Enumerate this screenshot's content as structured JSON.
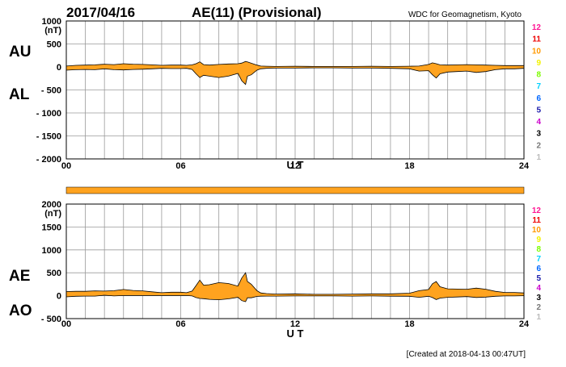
{
  "header": {
    "date": "2017/04/16",
    "title": "AE(11) (Provisional)",
    "source": "WDC for Geomagnetism, Kyoto"
  },
  "footer": {
    "created": "[Created at 2018-04-13 00:47UT]"
  },
  "colors": {
    "fill": "#ffa31f",
    "grid": "#9a9a9a",
    "axis": "#000000",
    "line": "#000000"
  },
  "station_counts": [
    {
      "label": "12",
      "color": "#ff1493"
    },
    {
      "label": "11",
      "color": "#ee0000"
    },
    {
      "label": "10",
      "color": "#ff9900"
    },
    {
      "label": "9",
      "color": "#f2f200"
    },
    {
      "label": "8",
      "color": "#7cfc00"
    },
    {
      "label": "7",
      "color": "#00d0ff"
    },
    {
      "label": "6",
      "color": "#0066ff"
    },
    {
      "label": "5",
      "color": "#1a1aaa"
    },
    {
      "label": "4",
      "color": "#cc00cc"
    },
    {
      "label": "3",
      "color": "#000000"
    },
    {
      "label": "2",
      "color": "#777777"
    },
    {
      "label": "1",
      "color": "#bbbbbb"
    }
  ],
  "chart_data": [
    {
      "type": "area",
      "panel": "AU/AL",
      "top_label": "AU",
      "bottom_label": "AL",
      "unit": "(nT)",
      "xlabel": "U T",
      "xlim": [
        0,
        24
      ],
      "xticks": [
        "00",
        "06",
        "12",
        "18",
        "24"
      ],
      "ylim": [
        -2000,
        1000
      ],
      "yticks": [
        {
          "v": 1000,
          "t": "1000"
        },
        {
          "v": 500,
          "t": "500"
        },
        {
          "v": 0,
          "t": "0"
        },
        {
          "v": -500,
          "t": "- 500"
        },
        {
          "v": -1000,
          "t": "- 1000"
        },
        {
          "v": -1500,
          "t": "- 1500"
        },
        {
          "v": -2000,
          "t": "- 2000"
        }
      ],
      "x": [
        0,
        0.5,
        1,
        1.5,
        2,
        2.5,
        3,
        3.5,
        4,
        4.5,
        5,
        5.5,
        6,
        6.3,
        6.6,
        6.8,
        7,
        7.2,
        7.5,
        8,
        8.5,
        9,
        9.2,
        9.4,
        9.5,
        9.7,
        10,
        10.2,
        10.5,
        11,
        12,
        13,
        14,
        15,
        16,
        17,
        18,
        18.5,
        19,
        19.2,
        19.4,
        19.6,
        20,
        20.5,
        21,
        21.5,
        22,
        22.5,
        23,
        23.5,
        24
      ],
      "upper": [
        20,
        35,
        40,
        45,
        60,
        50,
        70,
        60,
        55,
        45,
        35,
        40,
        40,
        35,
        45,
        70,
        110,
        50,
        40,
        55,
        65,
        70,
        85,
        120,
        110,
        80,
        40,
        20,
        15,
        10,
        15,
        10,
        10,
        10,
        15,
        10,
        15,
        20,
        55,
        90,
        70,
        45,
        40,
        45,
        50,
        45,
        40,
        35,
        30,
        30,
        30
      ],
      "lower": [
        -70,
        -60,
        -55,
        -60,
        -40,
        -60,
        -65,
        -55,
        -50,
        -40,
        -30,
        -35,
        -35,
        -30,
        -55,
        -150,
        -230,
        -180,
        -200,
        -230,
        -200,
        -140,
        -300,
        -380,
        -200,
        -170,
        -70,
        -40,
        -30,
        -25,
        -25,
        -20,
        -20,
        -25,
        -25,
        -30,
        -40,
        -90,
        -80,
        -170,
        -240,
        -150,
        -110,
        -100,
        -90,
        -120,
        -100,
        -60,
        -40,
        -40,
        -30
      ]
    },
    {
      "type": "area",
      "panel": "AE/AO",
      "top_label": "AE",
      "bottom_label": "AO",
      "unit": "(nT)",
      "xlabel": "U T",
      "xlim": [
        0,
        24
      ],
      "xticks": [
        "00",
        "06",
        "12",
        "18",
        "24"
      ],
      "ylim": [
        -500,
        2000
      ],
      "yticks": [
        {
          "v": 2000,
          "t": "2000"
        },
        {
          "v": 1500,
          "t": "1500"
        },
        {
          "v": 1000,
          "t": "1000"
        },
        {
          "v": 500,
          "t": "500"
        },
        {
          "v": 0,
          "t": "0"
        },
        {
          "v": -500,
          "t": "- 500"
        }
      ],
      "x": [
        0,
        0.5,
        1,
        1.5,
        2,
        2.5,
        3,
        3.5,
        4,
        4.5,
        5,
        5.5,
        6,
        6.3,
        6.6,
        6.8,
        7,
        7.2,
        7.5,
        8,
        8.5,
        9,
        9.2,
        9.4,
        9.5,
        9.7,
        10,
        10.2,
        10.5,
        11,
        12,
        13,
        14,
        15,
        16,
        17,
        18,
        18.5,
        19,
        19.2,
        19.4,
        19.6,
        20,
        20.5,
        21,
        21.5,
        22,
        22.5,
        23,
        23.5,
        24
      ],
      "upper": [
        90,
        95,
        95,
        105,
        100,
        110,
        135,
        115,
        105,
        85,
        65,
        75,
        75,
        65,
        100,
        220,
        340,
        230,
        240,
        285,
        265,
        210,
        385,
        500,
        310,
        250,
        110,
        60,
        45,
        35,
        40,
        30,
        30,
        35,
        40,
        40,
        55,
        110,
        135,
        260,
        310,
        195,
        150,
        145,
        140,
        165,
        140,
        95,
        70,
        70,
        60
      ],
      "lower": [
        -25,
        -12,
        -8,
        -8,
        10,
        -5,
        3,
        3,
        3,
        3,
        3,
        3,
        3,
        3,
        -5,
        -40,
        -60,
        -65,
        -80,
        -88,
        -68,
        -35,
        -108,
        -130,
        -45,
        -45,
        -15,
        -10,
        -8,
        -8,
        -5,
        -5,
        -5,
        -8,
        -5,
        -10,
        -13,
        -35,
        -13,
        -40,
        -85,
        -53,
        -35,
        -28,
        -20,
        -38,
        -30,
        -13,
        -5,
        -5,
        0
      ]
    }
  ]
}
